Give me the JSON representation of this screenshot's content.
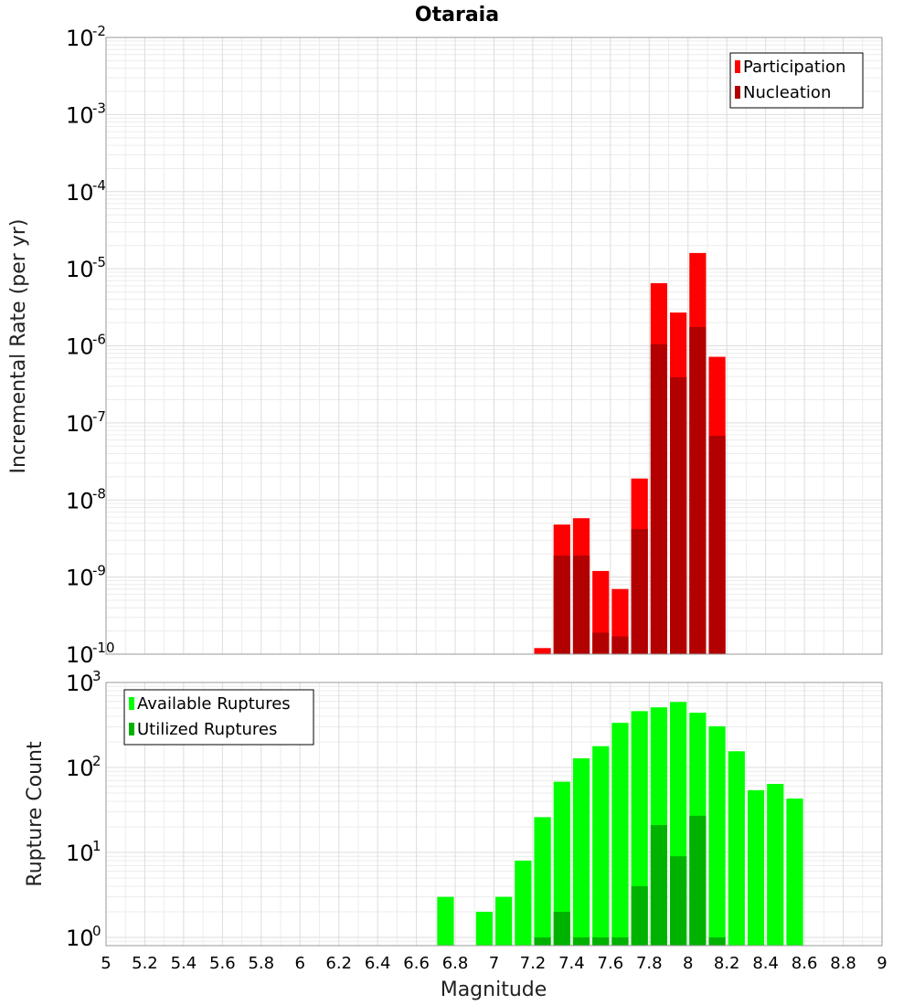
{
  "chart_data": {
    "title": "Otaraia",
    "xlabel": "Magnitude",
    "xlim": [
      5,
      9
    ],
    "x_ticks": [
      "5",
      "5.2",
      "5.4",
      "5.6",
      "5.8",
      "6",
      "6.2",
      "6.4",
      "6.6",
      "6.8",
      "7",
      "7.2",
      "7.4",
      "7.6",
      "7.8",
      "8",
      "8.2",
      "8.4",
      "8.6",
      "8.8",
      "9"
    ],
    "grid": true,
    "panels": [
      {
        "type": "bar",
        "ylabel": "Incremental Rate (per yr)",
        "yscale": "log",
        "ylim": [
          1e-10,
          0.01
        ],
        "y_ticks": [
          {
            "value": 0.01,
            "base": "10",
            "exp": "-2"
          },
          {
            "value": 0.001,
            "base": "10",
            "exp": "-3"
          },
          {
            "value": 0.0001,
            "base": "10",
            "exp": "-4"
          },
          {
            "value": 1e-05,
            "base": "10",
            "exp": "-5"
          },
          {
            "value": 1e-06,
            "base": "10",
            "exp": "-6"
          },
          {
            "value": 1e-07,
            "base": "10",
            "exp": "-7"
          },
          {
            "value": 1e-08,
            "base": "10",
            "exp": "-8"
          },
          {
            "value": 1e-09,
            "base": "10",
            "exp": "-9"
          },
          {
            "value": 1e-10,
            "base": "10",
            "exp": "-10"
          }
        ],
        "legend_position": "top-right",
        "series": [
          {
            "name": "Participation",
            "color": "#ff0000",
            "x": [
              7.25,
              7.35,
              7.45,
              7.55,
              7.65,
              7.75,
              7.85,
              7.95,
              8.05,
              8.15
            ],
            "values": [
              1.2e-10,
              4.8e-09,
              5.8e-09,
              1.2e-09,
              7e-10,
              1.9e-08,
              6.5e-06,
              2.7e-06,
              1.6e-05,
              7.2e-07
            ]
          },
          {
            "name": "Nucleation",
            "color": "#b20000",
            "x": [
              7.35,
              7.45,
              7.55,
              7.65,
              7.75,
              7.85,
              7.95,
              8.05,
              8.15
            ],
            "values": [
              1.9e-09,
              1.9e-09,
              1.9e-10,
              1.7e-10,
              4.2e-09,
              1.05e-06,
              3.9e-07,
              1.75e-06,
              6.8e-08
            ]
          }
        ]
      },
      {
        "type": "bar",
        "ylabel": "Rupture Count",
        "yscale": "log",
        "ylim": [
          0.8,
          1000
        ],
        "y_ticks": [
          {
            "value": 1000,
            "base": "10",
            "exp": "3"
          },
          {
            "value": 100,
            "base": "10",
            "exp": "2"
          },
          {
            "value": 10,
            "base": "10",
            "exp": "1"
          },
          {
            "value": 1,
            "base": "10",
            "exp": "0"
          }
        ],
        "legend_position": "top-left",
        "series": [
          {
            "name": "Available Ruptures",
            "color": "#00ff00",
            "x": [
              6.75,
              6.95,
              7.05,
              7.15,
              7.25,
              7.35,
              7.45,
              7.55,
              7.65,
              7.75,
              7.85,
              7.95,
              8.05,
              8.15,
              8.25,
              8.35,
              8.45,
              8.55
            ],
            "values": [
              3,
              2,
              3,
              8,
              26,
              68,
              128,
              178,
              335,
              460,
              510,
              590,
              440,
              305,
              155,
              54,
              64,
              43
            ]
          },
          {
            "name": "Utilized Ruptures",
            "color": "#00b200",
            "x": [
              7.25,
              7.35,
              7.45,
              7.55,
              7.65,
              7.75,
              7.85,
              7.95,
              8.05,
              8.15
            ],
            "values": [
              1,
              2,
              1,
              1,
              1,
              4,
              21,
              9,
              27,
              1
            ]
          }
        ]
      }
    ]
  }
}
